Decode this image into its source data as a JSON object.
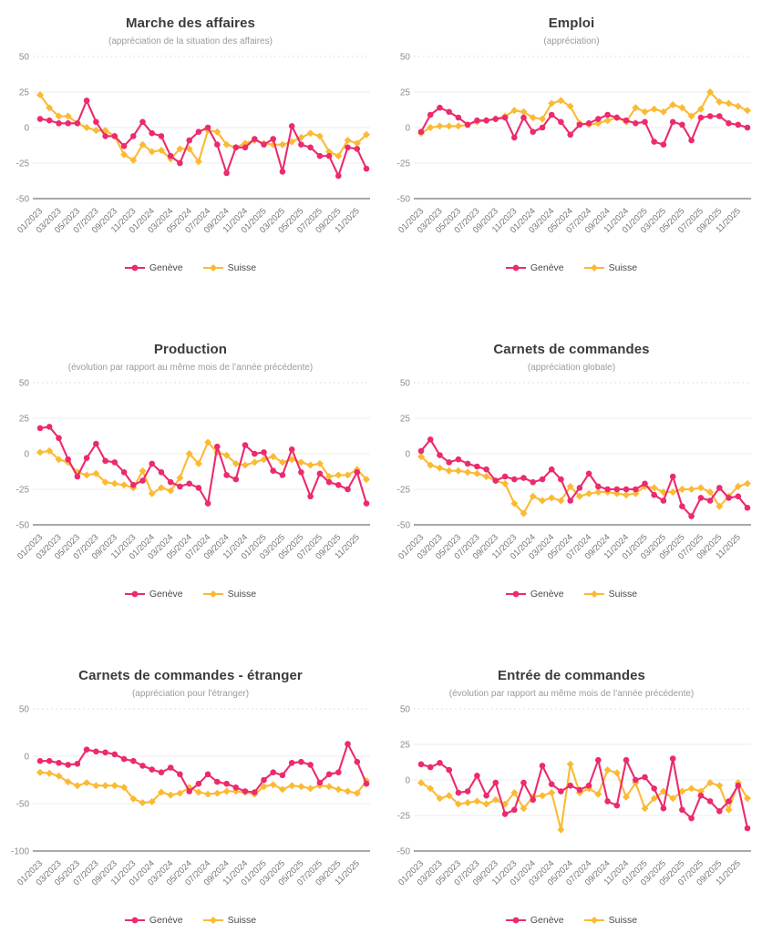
{
  "axis": {
    "x_tick_labels": [
      "01/2023",
      "03/2023",
      "05/2023",
      "07/2023",
      "09/2023",
      "11/2023",
      "01/2024",
      "03/2024",
      "05/2024",
      "07/2024",
      "09/2024",
      "11/2024",
      "01/2025",
      "03/2025",
      "05/2025",
      "07/2025",
      "09/2025",
      "11/2025"
    ],
    "points_per_series": 36
  },
  "colors": {
    "geneve": "#EC2A6E",
    "suisse": "#FBBA33"
  },
  "chart_data": [
    {
      "type": "line",
      "title": "Marche des affaires",
      "subtitle": "(appréciation de la situation des affaires)",
      "ylim": [
        -50,
        50
      ],
      "yticks": [
        50,
        25,
        0,
        -25,
        -50
      ],
      "legend_position": "bottom",
      "grid": true,
      "series": [
        {
          "name": "Genève",
          "color": "#EC2A6E",
          "marker": "circle",
          "values": [
            6,
            5,
            3,
            3,
            3,
            19,
            4,
            -6,
            -6,
            -13,
            -6,
            4,
            -4,
            -6,
            -20,
            -25,
            -9,
            -3,
            0,
            -12,
            -32,
            -14,
            -14,
            -8,
            -12,
            -8,
            -31,
            1,
            -12,
            -14,
            -20,
            -20,
            -34,
            -14,
            -15,
            -29
          ]
        },
        {
          "name": "Suisse",
          "color": "#FBBA33",
          "marker": "diamond",
          "values": [
            23,
            14,
            8,
            8,
            3,
            0,
            -2,
            -2,
            -6,
            -19,
            -23,
            -12,
            -17,
            -16,
            -22,
            -15,
            -15,
            -24,
            -2,
            -3,
            -12,
            -14,
            -11,
            -9,
            -11,
            -12,
            -12,
            -10,
            -7,
            -4,
            -6,
            -17,
            -20,
            -9,
            -11,
            -5
          ]
        }
      ]
    },
    {
      "type": "line",
      "title": "Emploi",
      "subtitle": "(appréciation)",
      "ylim": [
        -50,
        50
      ],
      "yticks": [
        50,
        25,
        0,
        -25,
        -50
      ],
      "legend_position": "bottom",
      "grid": true,
      "series": [
        {
          "name": "Genève",
          "color": "#EC2A6E",
          "marker": "circle",
          "values": [
            -3,
            9,
            14,
            11,
            7,
            2,
            5,
            5,
            6,
            7,
            -7,
            7,
            -3,
            0,
            9,
            4,
            -5,
            2,
            3,
            6,
            9,
            7,
            5,
            3,
            4,
            -10,
            -12,
            4,
            2,
            -9,
            7,
            8,
            8,
            3,
            2,
            0
          ]
        },
        {
          "name": "Suisse",
          "color": "#FBBA33",
          "marker": "diamond",
          "values": [
            -4,
            0,
            1,
            1,
            1,
            2,
            4,
            5,
            6,
            8,
            12,
            11,
            7,
            6,
            17,
            19,
            15,
            3,
            2,
            3,
            5,
            7,
            4,
            14,
            11,
            13,
            11,
            16,
            14,
            8,
            13,
            25,
            18,
            17,
            15,
            12
          ]
        }
      ]
    },
    {
      "type": "line",
      "title": "Production",
      "subtitle": "(évolution par rapport au même mois de l’année précédente)",
      "ylim": [
        -50,
        50
      ],
      "yticks": [
        50,
        25,
        0,
        -25,
        -50
      ],
      "legend_position": "bottom",
      "grid": true,
      "series": [
        {
          "name": "Genève",
          "color": "#EC2A6E",
          "marker": "circle",
          "values": [
            18,
            19,
            11,
            -4,
            -16,
            -3,
            7,
            -5,
            -6,
            -13,
            -22,
            -19,
            -7,
            -13,
            -20,
            -23,
            -21,
            -24,
            -35,
            5,
            -15,
            -18,
            6,
            0,
            1,
            -12,
            -15,
            3,
            -13,
            -30,
            -14,
            -20,
            -22,
            -25,
            -13,
            -35
          ]
        },
        {
          "name": "Suisse",
          "color": "#FBBA33",
          "marker": "diamond",
          "values": [
            1,
            2,
            -4,
            -6,
            -13,
            -15,
            -14,
            -20,
            -21,
            -22,
            -24,
            -12,
            -28,
            -24,
            -26,
            -17,
            0,
            -7,
            8,
            1,
            -1,
            -7,
            -8,
            -6,
            -4,
            -2,
            -6,
            -4,
            -6,
            -8,
            -7,
            -16,
            -15,
            -15,
            -11,
            -18
          ]
        }
      ]
    },
    {
      "type": "line",
      "title": "Carnets de commandes",
      "subtitle": "(appréciation globale)",
      "ylim": [
        -50,
        50
      ],
      "yticks": [
        50,
        25,
        0,
        -25,
        -50
      ],
      "legend_position": "bottom",
      "grid": true,
      "series": [
        {
          "name": "Genève",
          "color": "#EC2A6E",
          "marker": "circle",
          "values": [
            2,
            10,
            -1,
            -6,
            -4,
            -7,
            -9,
            -11,
            -19,
            -16,
            -18,
            -17,
            -20,
            -18,
            -11,
            -18,
            -33,
            -24,
            -14,
            -23,
            -25,
            -25,
            -25,
            -25,
            -21,
            -29,
            -33,
            -16,
            -37,
            -44,
            -31,
            -33,
            -24,
            -31,
            -30,
            -38
          ]
        },
        {
          "name": "Suisse",
          "color": "#FBBA33",
          "marker": "diamond",
          "values": [
            -2,
            -8,
            -10,
            -12,
            -12,
            -13,
            -14,
            -16,
            -19,
            -21,
            -35,
            -42,
            -30,
            -33,
            -31,
            -33,
            -23,
            -30,
            -28,
            -27,
            -27,
            -28,
            -29,
            -28,
            -23,
            -24,
            -27,
            -27,
            -25,
            -25,
            -24,
            -27,
            -37,
            -30,
            -23,
            -21
          ]
        }
      ]
    },
    {
      "type": "line",
      "title": "Carnets de commandes - étranger",
      "subtitle": "(appréciation pour l'étranger)",
      "ylim": [
        -100,
        50
      ],
      "yticks": [
        50,
        0,
        -50,
        -100
      ],
      "legend_position": "bottom",
      "grid": true,
      "series": [
        {
          "name": "Genève",
          "color": "#EC2A6E",
          "marker": "circle",
          "values": [
            -5,
            -5,
            -7,
            -9,
            -8,
            7,
            5,
            4,
            2,
            -3,
            -5,
            -10,
            -14,
            -17,
            -12,
            -19,
            -37,
            -29,
            -19,
            -27,
            -29,
            -33,
            -37,
            -38,
            -25,
            -17,
            -20,
            -7,
            -6,
            -9,
            -28,
            -19,
            -17,
            13,
            -6,
            -29
          ]
        },
        {
          "name": "Suisse",
          "color": "#FBBA33",
          "marker": "diamond",
          "values": [
            -17,
            -18,
            -21,
            -27,
            -31,
            -28,
            -31,
            -31,
            -31,
            -33,
            -45,
            -49,
            -48,
            -38,
            -41,
            -39,
            -33,
            -38,
            -40,
            -39,
            -37,
            -37,
            -38,
            -40,
            -32,
            -30,
            -35,
            -31,
            -32,
            -34,
            -31,
            -32,
            -35,
            -37,
            -39,
            -26
          ]
        }
      ]
    },
    {
      "type": "line",
      "title": "Entrée de commandes",
      "subtitle": "(évolution par rapport au même mois de l’année précédente)",
      "ylim": [
        -50,
        50
      ],
      "yticks": [
        50,
        25,
        0,
        -25,
        -50
      ],
      "legend_position": "bottom",
      "grid": true,
      "series": [
        {
          "name": "Genève",
          "color": "#EC2A6E",
          "marker": "circle",
          "values": [
            11,
            9,
            12,
            7,
            -9,
            -8,
            3,
            -11,
            -2,
            -24,
            -21,
            -2,
            -14,
            10,
            -3,
            -8,
            -4,
            -7,
            -4,
            14,
            -15,
            -18,
            14,
            0,
            2,
            -6,
            -20,
            15,
            -21,
            -27,
            -11,
            -15,
            -22,
            -15,
            -4,
            -34
          ]
        },
        {
          "name": "Suisse",
          "color": "#FBBA33",
          "marker": "diamond",
          "values": [
            -2,
            -6,
            -13,
            -11,
            -17,
            -16,
            -15,
            -17,
            -14,
            -17,
            -9,
            -20,
            -12,
            -11,
            -9,
            -35,
            11,
            -9,
            -6,
            -10,
            7,
            5,
            -12,
            -2,
            -20,
            -13,
            -8,
            -13,
            -8,
            -6,
            -8,
            -2,
            -4,
            -21,
            -2,
            -13
          ]
        }
      ]
    }
  ]
}
